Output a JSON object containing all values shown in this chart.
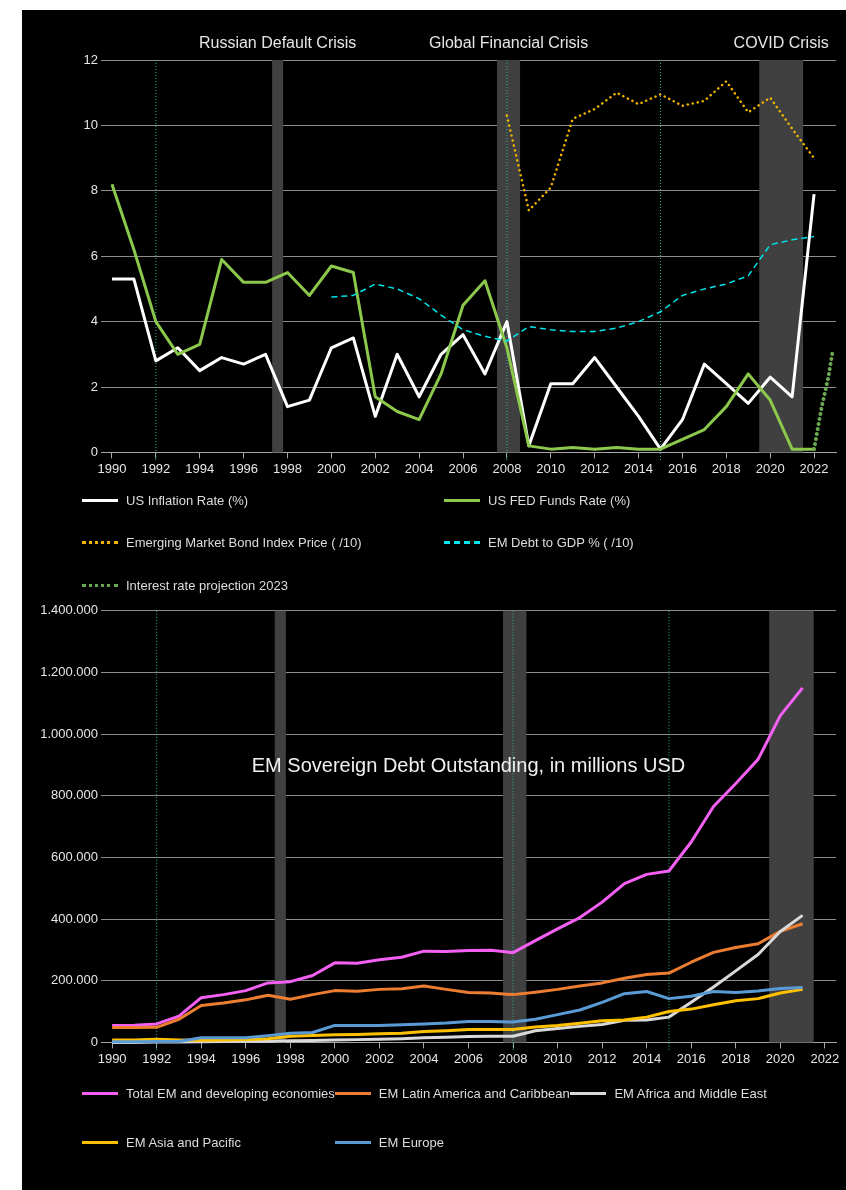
{
  "chart_data": [
    {
      "type": "line",
      "x": [
        1990,
        1991,
        1992,
        1993,
        1994,
        1995,
        1996,
        1997,
        1998,
        1999,
        2000,
        2001,
        2002,
        2003,
        2004,
        2005,
        2006,
        2007,
        2008,
        2009,
        2010,
        2011,
        2012,
        2013,
        2014,
        2015,
        2016,
        2017,
        2018,
        2019,
        2020,
        2021,
        2022
      ],
      "xlim": [
        1989.5,
        2023
      ],
      "xticks": [
        1990,
        1992,
        1994,
        1996,
        1998,
        2000,
        2002,
        2004,
        2006,
        2008,
        2010,
        2012,
        2014,
        2016,
        2018,
        2020,
        2022
      ],
      "ylim": [
        0,
        12
      ],
      "yticks": [
        0,
        2,
        4,
        6,
        8,
        10,
        12
      ],
      "grid": "y",
      "legend": "bottom",
      "series": [
        {
          "name": "US Inflation Rate (%)",
          "color": "#ffffff",
          "line_style": "solid",
          "values": [
            5.3,
            5.3,
            2.8,
            3.2,
            2.5,
            2.9,
            2.7,
            3.0,
            1.4,
            1.6,
            3.2,
            3.5,
            1.1,
            3.0,
            1.7,
            3.0,
            3.6,
            2.4,
            4.0,
            0.2,
            2.1,
            2.1,
            2.9,
            2.0,
            1.1,
            0.1,
            1.0,
            2.7,
            2.1,
            1.5,
            2.3,
            1.7,
            7.9
          ]
        },
        {
          "name": "US FED Funds Rate (%)",
          "color": "#8cc84b",
          "line_style": "solid",
          "values": [
            8.2,
            6.2,
            4.0,
            3.0,
            3.3,
            5.9,
            5.2,
            5.2,
            5.5,
            4.8,
            5.7,
            5.5,
            1.7,
            1.25,
            1.0,
            2.4,
            4.5,
            5.25,
            3.2,
            0.2,
            0.1,
            0.15,
            0.1,
            0.15,
            0.1,
            0.1,
            0.4,
            0.7,
            1.4,
            2.4,
            1.6,
            0.1,
            0.1
          ]
        },
        {
          "name": "Emerging Market Bond Index Price ( /10)",
          "color": "#f0b400",
          "line_style": "dotted",
          "values": [
            null,
            null,
            null,
            null,
            null,
            null,
            null,
            null,
            null,
            null,
            null,
            null,
            null,
            null,
            null,
            null,
            null,
            null,
            10.3,
            7.4,
            8.1,
            10.2,
            10.5,
            11.0,
            10.65,
            10.95,
            10.6,
            10.75,
            11.35,
            10.4,
            10.85,
            9.9,
            9.0
          ]
        },
        {
          "name": "EM Debt to GDP % ( /10)",
          "color": "#00e5ee",
          "line_style": "dashed",
          "values": [
            null,
            null,
            null,
            null,
            null,
            null,
            null,
            null,
            null,
            null,
            4.75,
            4.8,
            5.15,
            5.0,
            4.7,
            4.2,
            3.75,
            3.55,
            3.4,
            3.85,
            3.75,
            3.7,
            3.7,
            3.8,
            4.0,
            4.3,
            4.8,
            5.0,
            5.15,
            5.4,
            6.35,
            6.5,
            6.6
          ]
        },
        {
          "name": "Interest rate projection 2023",
          "color": "#6aa84f",
          "line_style": "dotted",
          "x": [
            2022,
            2022.35,
            2022.65,
            2022.85
          ],
          "values": [
            0.1,
            1.4,
            2.3,
            3.1
          ]
        }
      ],
      "bands": [
        {
          "axis": "x",
          "from": 1997.3,
          "to": 1997.8,
          "label": "Russian Default Crisis",
          "color": "#404040"
        },
        {
          "axis": "x",
          "from": 2007.55,
          "to": 2008.6,
          "label": "Global Financial Crisis",
          "color": "#404040"
        },
        {
          "axis": "x",
          "from": 2019.5,
          "to": 2021.5,
          "label": "COVID Crisis",
          "color": "#404040"
        }
      ],
      "ref_lines": [
        {
          "axis": "x",
          "value": 1992,
          "color": "#2ab5a0",
          "line_style": "dotted"
        },
        {
          "axis": "x",
          "value": 2008,
          "color": "#2ab5a0",
          "line_style": "dotted"
        },
        {
          "axis": "x",
          "value": 2015,
          "color": "#2ab5a0",
          "line_style": "dotted"
        }
      ]
    },
    {
      "type": "line",
      "title": "EM Sovereign Debt Outstanding, in millions USD",
      "x": [
        1990,
        1991,
        1992,
        1993,
        1994,
        1995,
        1996,
        1997,
        1998,
        1999,
        2000,
        2001,
        2002,
        2003,
        2004,
        2005,
        2006,
        2007,
        2008,
        2009,
        2010,
        2011,
        2012,
        2013,
        2014,
        2015,
        2016,
        2017,
        2018,
        2019,
        2020,
        2021
      ],
      "xlim": [
        1989.5,
        2022.5
      ],
      "xticks": [
        1990,
        1992,
        1994,
        1996,
        1998,
        2000,
        2002,
        2004,
        2006,
        2008,
        2010,
        2012,
        2014,
        2016,
        2018,
        2020,
        2022
      ],
      "ylim": [
        0,
        1400000
      ],
      "yticks": [
        0,
        {
          "value": 200000,
          "label": "200.000"
        },
        {
          "value": 400000,
          "label": "400.000"
        },
        {
          "value": 600000,
          "label": "600.000"
        },
        {
          "value": 800000,
          "label": "800.000"
        },
        {
          "value": 1000000,
          "label": "1.000.000"
        },
        {
          "value": 1200000,
          "label": "1.200.000"
        },
        {
          "value": 1400000,
          "label": "1.400.000"
        }
      ],
      "grid": "y",
      "legend": "bottom",
      "series": [
        {
          "name": "Total EM and developing economies",
          "color": "#f45ff4",
          "values": [
            55000,
            56000,
            60000,
            85000,
            145000,
            155000,
            168000,
            193000,
            197000,
            217000,
            258000,
            257000,
            268000,
            276000,
            296000,
            295000,
            298000,
            299000,
            291000,
            330000,
            368000,
            405000,
            455000,
            515000,
            545000,
            556000,
            650000,
            765000,
            840000,
            918000,
            1060000,
            1150000
          ]
        },
        {
          "name": "EM Latin America and Caribbean",
          "color": "#ed7d31",
          "values": [
            48000,
            48000,
            49000,
            75000,
            120000,
            128000,
            138000,
            153000,
            140000,
            155000,
            168000,
            166000,
            172000,
            174000,
            183000,
            172000,
            162000,
            160000,
            155000,
            163000,
            172000,
            183000,
            193000,
            208000,
            220000,
            225000,
            260000,
            292000,
            308000,
            320000,
            360000,
            385000
          ]
        },
        {
          "name": "EM Africa and Middle East",
          "color": "#d9d9d9",
          "values": [
            0,
            0,
            1000,
            1000,
            2000,
            3000,
            4000,
            4000,
            5000,
            6000,
            8000,
            9000,
            10000,
            12000,
            15000,
            17000,
            19000,
            20000,
            20000,
            38000,
            45000,
            52000,
            58000,
            72000,
            73000,
            82000,
            130000,
            180000,
            232000,
            285000,
            360000,
            412000
          ]
        },
        {
          "name": "EM Asia and Pacific",
          "color": "#ffc000",
          "values": [
            8000,
            8000,
            10000,
            8000,
            7000,
            8000,
            9000,
            12000,
            20000,
            22000,
            25000,
            26000,
            28000,
            30000,
            35000,
            38000,
            42000,
            42000,
            42000,
            50000,
            55000,
            62000,
            70000,
            73000,
            82000,
            100000,
            108000,
            122000,
            135000,
            142000,
            160000,
            172000
          ]
        },
        {
          "name": "EM Europe",
          "color": "#5b9bd5",
          "values": [
            2000,
            2000,
            3000,
            3000,
            15000,
            15000,
            15000,
            22000,
            30000,
            32000,
            55000,
            55000,
            55000,
            57000,
            60000,
            63000,
            68000,
            68000,
            66000,
            75000,
            90000,
            105000,
            130000,
            158000,
            165000,
            142000,
            150000,
            165000,
            162000,
            167000,
            175000,
            178000
          ]
        }
      ],
      "bands": [
        {
          "axis": "x",
          "from": 1997.3,
          "to": 1997.8,
          "color": "#404040"
        },
        {
          "axis": "x",
          "from": 2007.55,
          "to": 2008.6,
          "color": "#404040"
        },
        {
          "axis": "x",
          "from": 2019.5,
          "to": 2021.5,
          "color": "#404040"
        }
      ],
      "ref_lines": [
        {
          "axis": "x",
          "value": 1992,
          "color": "#2ab5a0",
          "line_style": "dotted"
        },
        {
          "axis": "x",
          "value": 2008,
          "color": "#2ab5a0",
          "line_style": "dotted"
        },
        {
          "axis": "x",
          "value": 2015,
          "color": "#2ab5a0",
          "line_style": "dotted"
        }
      ]
    }
  ]
}
